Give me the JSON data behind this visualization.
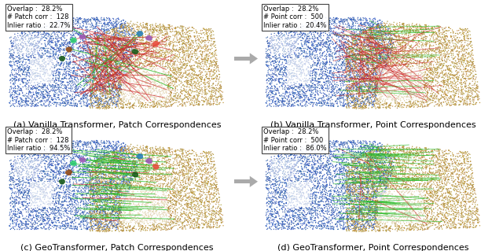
{
  "fig_width": 6.4,
  "fig_height": 3.19,
  "dpi": 100,
  "background_color": "#ffffff",
  "panels": [
    {
      "id": "a",
      "caption": "(a) Vanilla Transformer, Patch Correspondences",
      "stats": [
        "Overlap :  28.2%",
        "# Patch corr :  128",
        "Inlier ratio :  22.7%"
      ]
    },
    {
      "id": "b",
      "caption": "(b) Vanilla Transformer, Point Correspondences",
      "stats": [
        "Overlap :  28.2%",
        "# Point corr :  500",
        "Inlier ratio :  20.4%"
      ]
    },
    {
      "id": "c",
      "caption": "(c) GeoTransformer, Patch Correspondences",
      "stats": [
        "Overlap :  28.2%",
        "# Patch corr :  128",
        "Inlier ratio :  94.5%"
      ]
    },
    {
      "id": "d",
      "caption": "(d) GeoTransformer, Point Correspondences",
      "stats": [
        "Overlap :  28.2%",
        "# Point corr :  500",
        "Inlier ratio :  86.0%"
      ]
    }
  ],
  "stats_fontsize": 6.0,
  "caption_fontsize": 8.0,
  "arrow_gray": "#aaaaaa"
}
